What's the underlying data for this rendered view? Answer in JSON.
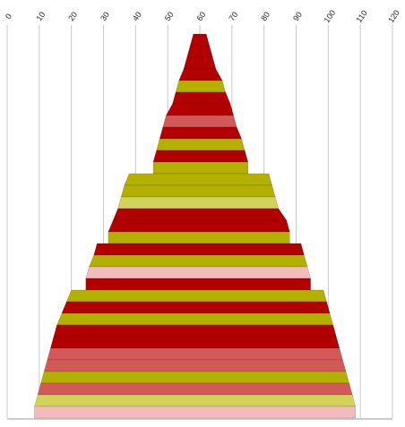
{
  "chart_data": {
    "type": "funnel-bands",
    "x_axis": {
      "min": 0,
      "max": 120,
      "ticks": [
        0,
        10,
        20,
        30,
        40,
        50,
        60,
        70,
        80,
        90,
        100,
        110,
        120
      ],
      "position": "top",
      "rotated_labels": true,
      "grid": true
    },
    "palette": {
      "red": "#b20000",
      "olive": "#b3b000",
      "salmon": "#d35858",
      "lime": "#d2d35a",
      "pink": "#f2bcbc"
    },
    "bands": [
      {
        "left": 58,
        "right": 62,
        "color": "red"
      },
      {
        "left": 57,
        "right": 63,
        "color": "red"
      },
      {
        "left": 56,
        "right": 64,
        "color": "red"
      },
      {
        "left": 55,
        "right": 65,
        "color": "red"
      },
      {
        "left": 53.5,
        "right": 67,
        "color": "olive"
      },
      {
        "left": 52.5,
        "right": 68,
        "color": "red"
      },
      {
        "left": 51.5,
        "right": 69.5,
        "color": "red"
      },
      {
        "left": 49.5,
        "right": 70.5,
        "color": "salmon"
      },
      {
        "left": 48.5,
        "right": 71.5,
        "color": "red"
      },
      {
        "left": 47.5,
        "right": 73,
        "color": "olive"
      },
      {
        "left": 46.5,
        "right": 74,
        "color": "red"
      },
      {
        "left": 45.5,
        "right": 75,
        "color": "olive"
      },
      {
        "left": 38,
        "right": 81.5,
        "color": "olive"
      },
      {
        "left": 36.5,
        "right": 82.5,
        "color": "olive"
      },
      {
        "left": 35.5,
        "right": 83.5,
        "color": "lime"
      },
      {
        "left": 34.5,
        "right": 84.5,
        "color": "red"
      },
      {
        "left": 33,
        "right": 87,
        "color": "red"
      },
      {
        "left": 31.5,
        "right": 88,
        "color": "olive"
      },
      {
        "left": 28,
        "right": 91.5,
        "color": "red"
      },
      {
        "left": 27,
        "right": 92.5,
        "color": "olive"
      },
      {
        "left": 25.5,
        "right": 93.5,
        "color": "pink"
      },
      {
        "left": 24.5,
        "right": 94.5,
        "color": "red"
      },
      {
        "left": 20,
        "right": 98.5,
        "color": "olive"
      },
      {
        "left": 18.5,
        "right": 99.5,
        "color": "red"
      },
      {
        "left": 17,
        "right": 100.5,
        "color": "olive"
      },
      {
        "left": 15.5,
        "right": 101.5,
        "color": "red"
      },
      {
        "left": 14.5,
        "right": 102.5,
        "color": "red"
      },
      {
        "left": 13.5,
        "right": 103.5,
        "color": "salmon"
      },
      {
        "left": 12.5,
        "right": 104.5,
        "color": "salmon"
      },
      {
        "left": 11.5,
        "right": 105.5,
        "color": "olive"
      },
      {
        "left": 10.5,
        "right": 106.5,
        "color": "salmon"
      },
      {
        "left": 9.5,
        "right": 107.5,
        "color": "lime"
      },
      {
        "left": 8.5,
        "right": 108.5,
        "color": "pink"
      }
    ]
  }
}
